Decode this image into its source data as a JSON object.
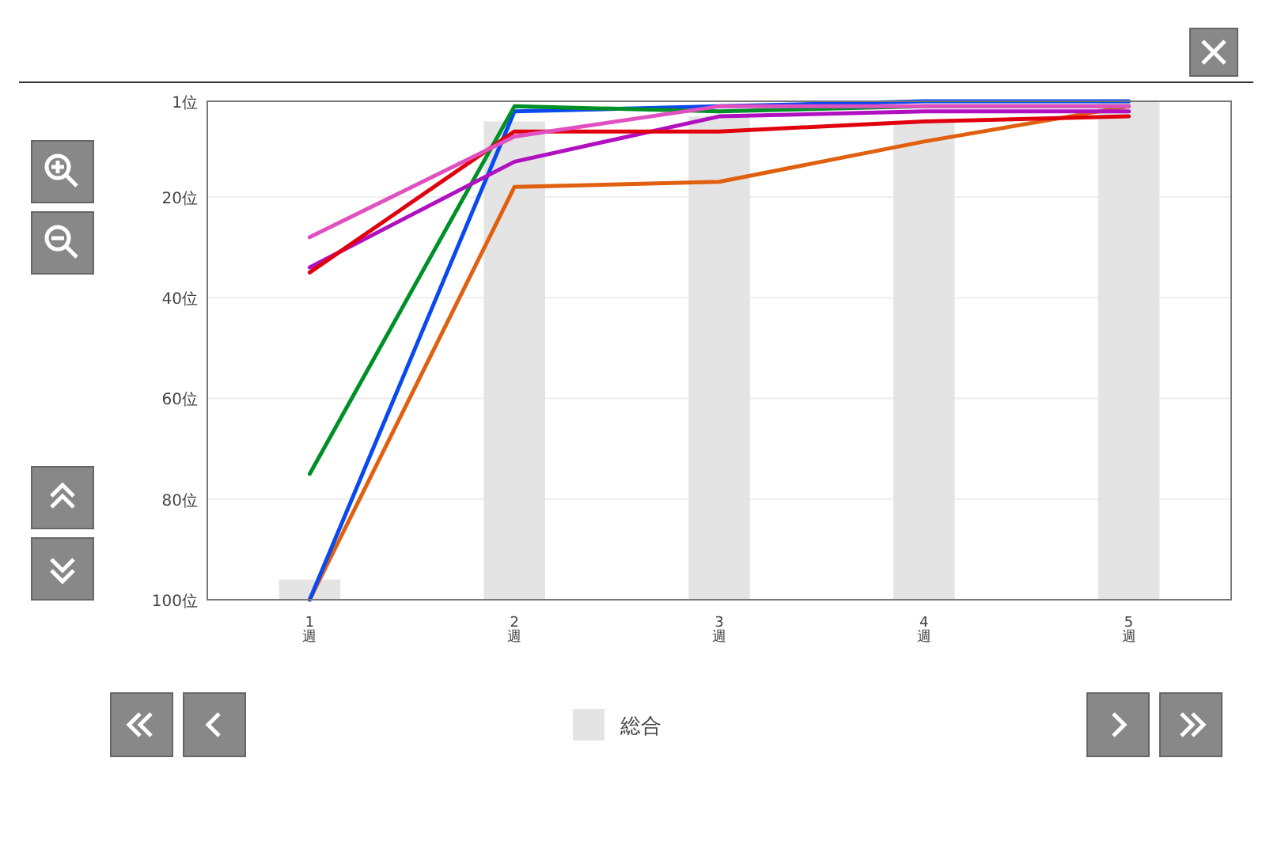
{
  "chart_data": {
    "type": "line",
    "categories": [
      "1週",
      "2週",
      "3週",
      "4週",
      "5週"
    ],
    "ylim": [
      100,
      1
    ],
    "yticks": [
      {
        "value": 1,
        "label": "1位"
      },
      {
        "value": 20,
        "label": "20位"
      },
      {
        "value": 40,
        "label": "40位"
      },
      {
        "value": 60,
        "label": "60位"
      },
      {
        "value": 80,
        "label": "80位"
      },
      {
        "value": 100,
        "label": "100位"
      }
    ],
    "grid": "y",
    "legend": "bottom",
    "marker": "none",
    "line_style": "solid",
    "series": [
      {
        "name": "総合",
        "type": "bar",
        "color": "#e4e4e4",
        "base": [
          100,
          100,
          100,
          100,
          100
        ],
        "values": [
          -4,
          -95,
          -96,
          -95,
          -99
        ]
      },
      {
        "color": "#e06010",
        "values": [
          100,
          18,
          17,
          9,
          2
        ]
      },
      {
        "color": "#0a48f0",
        "values": [
          100,
          3,
          2,
          1,
          1
        ]
      },
      {
        "color": "#009028",
        "values": [
          75,
          2,
          3,
          2,
          2
        ]
      },
      {
        "color": "#b010c0",
        "values": [
          34,
          13,
          4,
          3,
          3
        ]
      },
      {
        "color": "#e0000e",
        "values": [
          35,
          7,
          7,
          5,
          4
        ]
      },
      {
        "color": "#e050c0",
        "values": [
          28,
          8,
          2,
          2,
          2
        ]
      }
    ]
  }
}
